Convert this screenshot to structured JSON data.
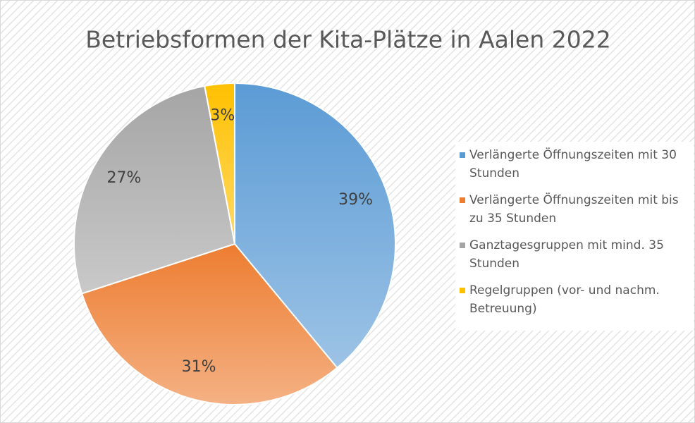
{
  "chart_data": {
    "type": "pie",
    "title": "Betriebsformen der Kita-Plätze in Aalen 2022",
    "categories": [
      "Verlängerte Öffnungszeiten mit 30 Stunden",
      "Verlängerte Öffnungszeiten mit bis zu 35 Stunden",
      "Ganztagesgruppen mit mind. 35 Stunden",
      "Regelgruppen (vor- und nachm. Betreuung)"
    ],
    "values": [
      39,
      31,
      27,
      3
    ],
    "value_labels": [
      "39%",
      "31%",
      "27%",
      "3%"
    ],
    "colors": [
      "#5b9bd5",
      "#ed7d31",
      "#a5a5a5",
      "#ffc000"
    ],
    "legend": "right"
  }
}
